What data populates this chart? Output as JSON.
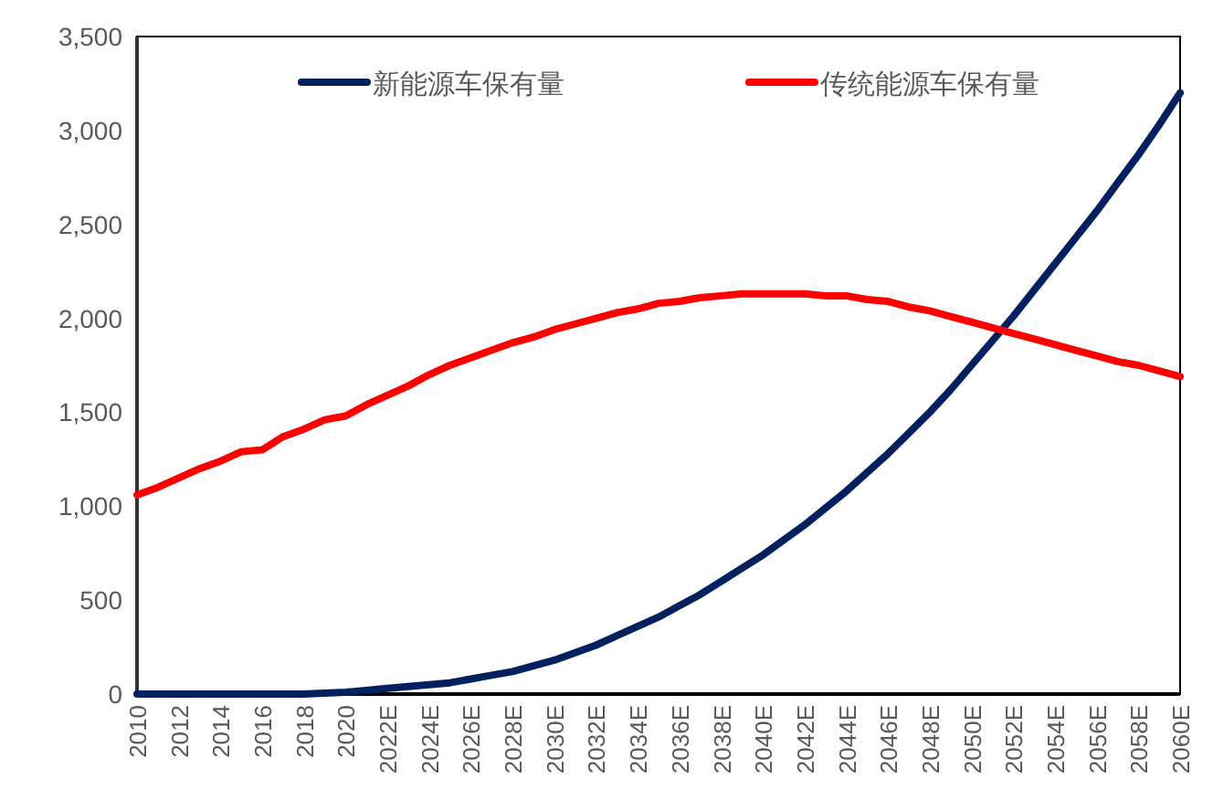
{
  "chart_data": {
    "type": "line",
    "categories": [
      "2010",
      null,
      "2012",
      null,
      "2014",
      null,
      "2016",
      null,
      "2018",
      null,
      "2020",
      null,
      "2022E",
      null,
      "2024E",
      null,
      "2026E",
      null,
      "2028E",
      null,
      "2030E",
      null,
      "2032E",
      null,
      "2034E",
      null,
      "2036E",
      null,
      "2038E",
      null,
      "2040E",
      null,
      "2042E",
      null,
      "2044E",
      null,
      "2046E",
      null,
      "2048E",
      null,
      "2050E",
      null,
      "2052E",
      null,
      "2054E",
      null,
      "2056E",
      null,
      "2058E",
      null,
      "2060E"
    ],
    "series": [
      {
        "name": "新能源车保有量",
        "color": "#002060",
        "values": [
          0,
          0,
          0,
          0,
          0,
          0,
          0,
          0,
          0,
          5,
          10,
          20,
          30,
          40,
          50,
          60,
          80,
          100,
          120,
          150,
          180,
          220,
          260,
          310,
          360,
          410,
          470,
          530,
          600,
          670,
          740,
          820,
          900,
          990,
          1080,
          1180,
          1280,
          1390,
          1500,
          1620,
          1750,
          1880,
          2010,
          2150,
          2290,
          2430,
          2570,
          2720,
          2870,
          3030,
          3200
        ]
      },
      {
        "name": "传统能源车保有量",
        "color": "#ff0000",
        "values": [
          1060,
          1100,
          1150,
          1200,
          1240,
          1290,
          1300,
          1370,
          1410,
          1460,
          1480,
          1540,
          1590,
          1640,
          1700,
          1750,
          1790,
          1830,
          1870,
          1900,
          1940,
          1970,
          2000,
          2030,
          2050,
          2080,
          2090,
          2110,
          2120,
          2130,
          2130,
          2130,
          2130,
          2120,
          2120,
          2100,
          2090,
          2060,
          2040,
          2010,
          1980,
          1950,
          1920,
          1890,
          1860,
          1830,
          1800,
          1770,
          1750,
          1720,
          1690
        ]
      }
    ],
    "ylim": [
      0,
      3500
    ],
    "yticks": [
      {
        "value": 0,
        "label": "0"
      },
      {
        "value": 500,
        "label": "500"
      },
      {
        "value": 1000,
        "label": "1,000"
      },
      {
        "value": 1500,
        "label": "1,500"
      },
      {
        "value": 2000,
        "label": "2,000"
      },
      {
        "value": 2500,
        "label": "2,500"
      },
      {
        "value": 3000,
        "label": "3,000"
      },
      {
        "value": 3500,
        "label": "3,500"
      }
    ],
    "legend": "top",
    "grid": false
  }
}
